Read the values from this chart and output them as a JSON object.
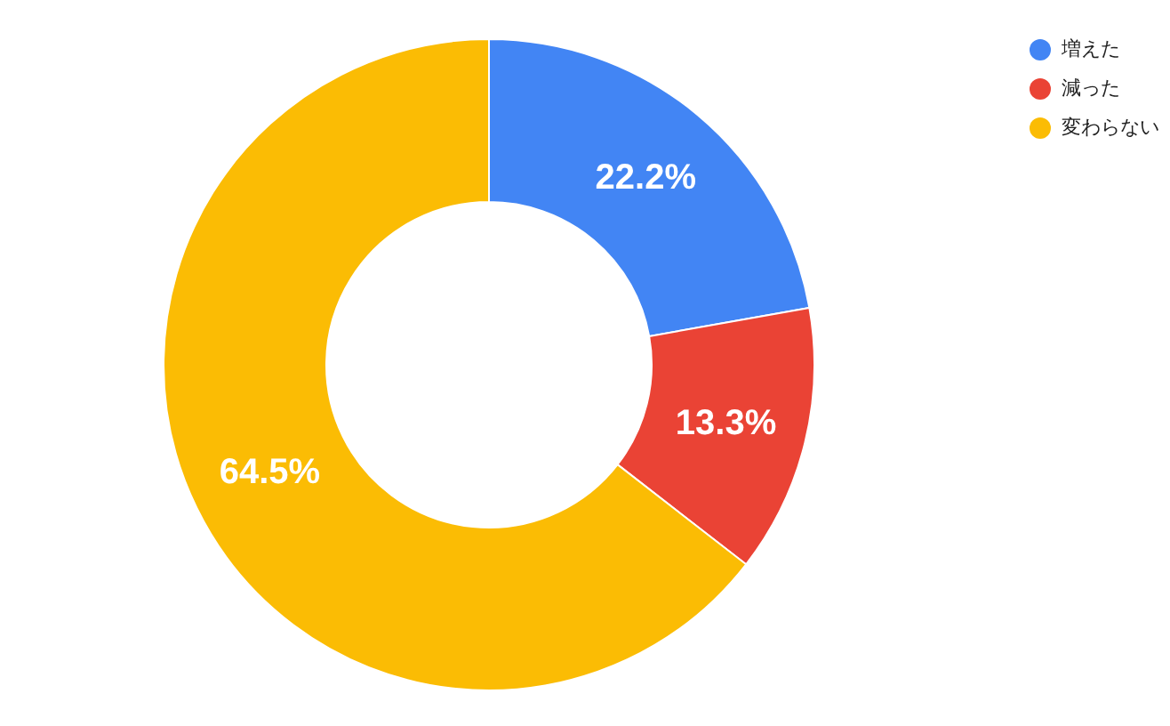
{
  "chart_data": {
    "type": "donut",
    "categories": [
      "増えた",
      "減った",
      "変わらない"
    ],
    "values": [
      22.2,
      13.3,
      64.5
    ],
    "colors": [
      "#4285f4",
      "#ea4335",
      "#fbbc04"
    ],
    "value_labels": [
      "22.2%",
      "13.3%",
      "64.5%"
    ],
    "legend": "top right"
  }
}
